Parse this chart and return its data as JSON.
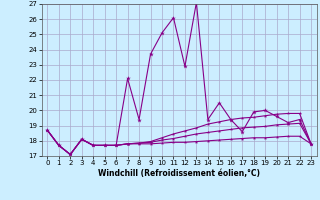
{
  "x": [
    0,
    1,
    2,
    3,
    4,
    5,
    6,
    7,
    8,
    9,
    10,
    11,
    12,
    13,
    14,
    15,
    16,
    17,
    18,
    19,
    20,
    21,
    22,
    23
  ],
  "line1": [
    18.7,
    17.7,
    17.1,
    18.1,
    17.7,
    17.7,
    17.7,
    22.1,
    19.4,
    23.7,
    25.1,
    26.1,
    22.9,
    27.1,
    19.4,
    20.5,
    19.4,
    18.6,
    19.9,
    20.0,
    19.6,
    19.2,
    19.4,
    17.8
  ],
  "line2": [
    18.7,
    17.7,
    17.1,
    18.1,
    17.7,
    17.7,
    17.7,
    17.8,
    17.8,
    17.8,
    17.85,
    17.9,
    17.9,
    17.95,
    18.0,
    18.05,
    18.1,
    18.15,
    18.2,
    18.2,
    18.25,
    18.3,
    18.3,
    17.8
  ],
  "line3": [
    18.7,
    17.7,
    17.1,
    18.1,
    17.7,
    17.7,
    17.7,
    17.8,
    17.85,
    17.9,
    18.05,
    18.15,
    18.3,
    18.45,
    18.55,
    18.65,
    18.75,
    18.85,
    18.9,
    18.95,
    19.05,
    19.1,
    19.15,
    17.8
  ],
  "line4": [
    18.7,
    17.7,
    17.1,
    18.1,
    17.7,
    17.7,
    17.7,
    17.8,
    17.85,
    17.95,
    18.2,
    18.45,
    18.65,
    18.85,
    19.1,
    19.25,
    19.4,
    19.5,
    19.55,
    19.65,
    19.75,
    19.8,
    19.8,
    17.8
  ],
  "line_color": "#880088",
  "bg_color": "#cceeff",
  "grid_color": "#aaaacc",
  "xlabel": "Windchill (Refroidissement éolien,°C)",
  "ylim": [
    17,
    27
  ],
  "xlim": [
    -0.5,
    23.5
  ],
  "yticks": [
    17,
    18,
    19,
    20,
    21,
    22,
    23,
    24,
    25,
    26,
    27
  ],
  "xticks": [
    0,
    1,
    2,
    3,
    4,
    5,
    6,
    7,
    8,
    9,
    10,
    11,
    12,
    13,
    14,
    15,
    16,
    17,
    18,
    19,
    20,
    21,
    22,
    23
  ]
}
